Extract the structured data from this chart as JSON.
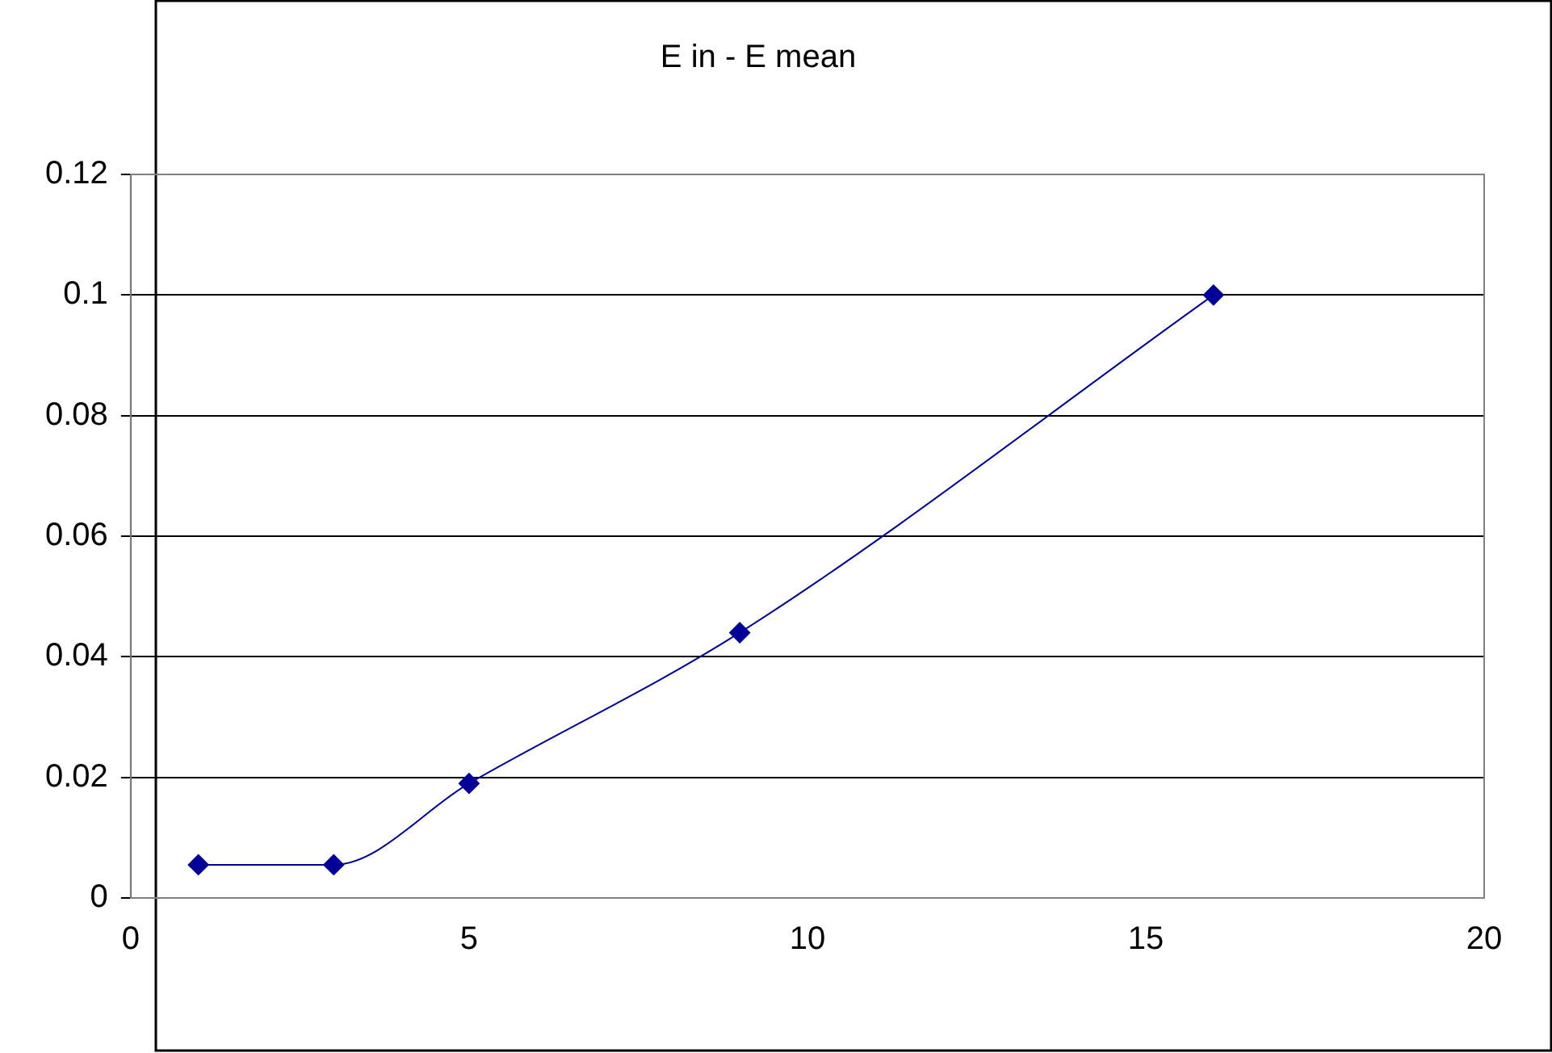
{
  "chart_data": {
    "type": "line",
    "title": "E in - E mean",
    "x": [
      1,
      3,
      5,
      9,
      16
    ],
    "series": [
      {
        "color": "#000099",
        "values": [
          0.0055,
          0.0055,
          0.019,
          0.044,
          0.1
        ]
      }
    ],
    "xlim": [
      0,
      20
    ],
    "xticks": [
      0,
      5,
      10,
      15,
      20
    ],
    "ylim": [
      0,
      0.12
    ],
    "yticks": [
      0,
      0.02,
      0.04,
      0.06,
      0.08,
      0.1,
      0.12
    ],
    "grid": "y",
    "legend": false,
    "marker": "diamond",
    "line_style": "solid"
  }
}
